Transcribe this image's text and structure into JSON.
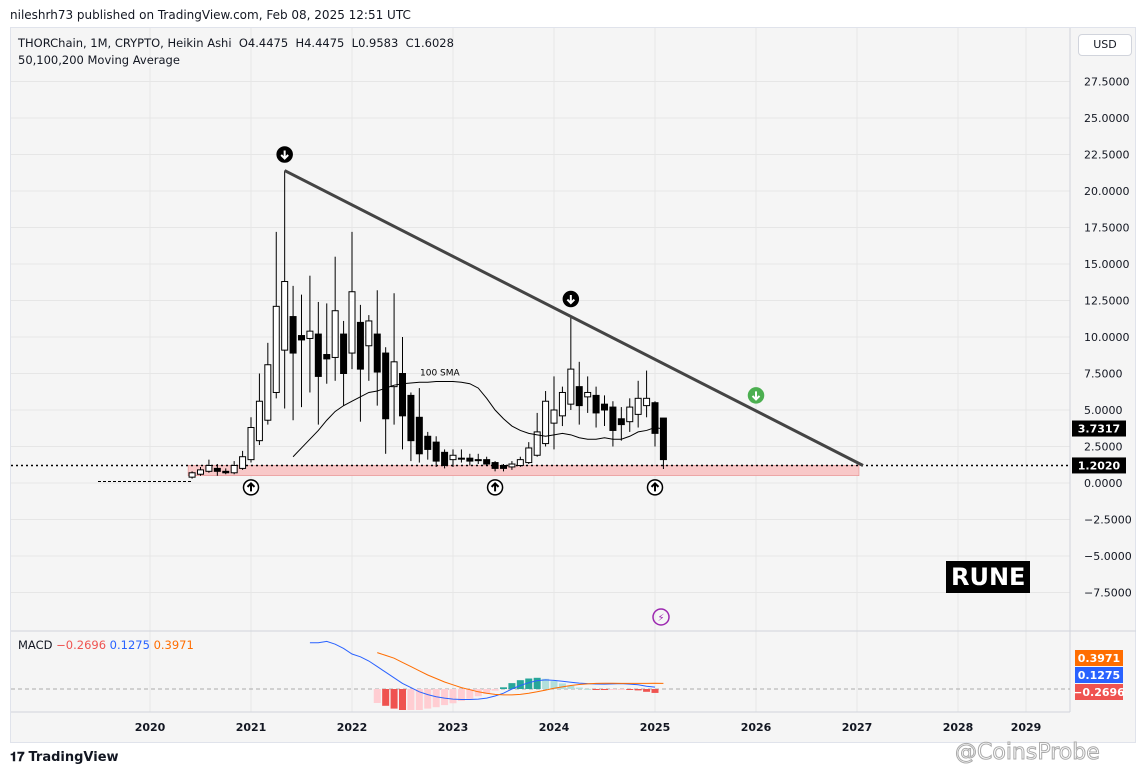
{
  "header": {
    "published": "nileshrh73 published on TradingView.com, Feb 08, 2025 12:51 UTC"
  },
  "legend": {
    "symbol": "THORChain, 1M, CRYPTO, Heikin Ashi",
    "open": "O4.4475",
    "high": "H4.4475",
    "low": "L0.9583",
    "close": "C1.6028",
    "indicator": "50,100,200 Moving Average"
  },
  "currency": "USD",
  "annotations": {
    "sma_label": "100 SMA",
    "rune_label": "RUNE"
  },
  "macd": {
    "label": "MACD",
    "hist": "−0.2696",
    "macd": "0.1275",
    "signal": "0.3971",
    "colors": {
      "macd": "#2962ff",
      "signal": "#ff6d00",
      "hist_neg": "#ef5350",
      "hist_pos": "#26a69a"
    }
  },
  "footer": {
    "brand": "TradingView",
    "watermark": "@CoinsProbe"
  },
  "chart_data": {
    "type": "candlestick",
    "price_ticks": [
      "27.5000",
      "25.0000",
      "22.5000",
      "20.0000",
      "17.5000",
      "15.0000",
      "12.5000",
      "10.0000",
      "7.5000",
      "5.0000",
      "2.5000",
      "0.0000",
      "−2.5000",
      "−5.0000",
      "−7.5000"
    ],
    "price_tick_values": [
      27.5,
      25,
      22.5,
      20,
      17.5,
      15,
      12.5,
      10,
      7.5,
      5,
      2.5,
      0,
      -2.5,
      -5,
      -7.5
    ],
    "year_ticks": [
      "2020",
      "2021",
      "2022",
      "2023",
      "2024",
      "2025",
      "2026",
      "2027",
      "2028",
      "2029"
    ],
    "ylim": [
      -10,
      29
    ],
    "last_price_label": "3.7317",
    "last_price": 3.7317,
    "support_label": "1.2020",
    "support": 1.202,
    "support_zone": [
      0.5,
      1.202
    ],
    "start_month": "2020-06",
    "candles": [
      [
        0.4,
        0.8,
        0.3,
        0.7
      ],
      [
        0.6,
        1.1,
        0.5,
        0.9
      ],
      [
        0.8,
        1.6,
        0.7,
        1.2
      ],
      [
        1.0,
        1.3,
        0.5,
        0.8
      ],
      [
        0.8,
        1.0,
        0.6,
        0.7
      ],
      [
        0.7,
        1.5,
        0.6,
        1.2
      ],
      [
        1.0,
        2.2,
        0.9,
        1.8
      ],
      [
        1.6,
        4.5,
        1.4,
        3.8
      ],
      [
        2.9,
        7.5,
        2.6,
        5.6
      ],
      [
        4.3,
        9.6,
        4.0,
        8.1
      ],
      [
        6.2,
        17.2,
        5.8,
        12.1
      ],
      [
        9.1,
        21.4,
        5.1,
        13.8
      ],
      [
        11.4,
        13.5,
        4.3,
        8.9
      ],
      [
        10.1,
        12.9,
        5.2,
        9.8
      ],
      [
        9.9,
        14.2,
        6.2,
        10.4
      ],
      [
        10.2,
        12.4,
        4.0,
        7.3
      ],
      [
        8.8,
        12.3,
        6.8,
        8.5
      ],
      [
        8.6,
        15.5,
        7.0,
        11.8
      ],
      [
        10.2,
        11.1,
        5.3,
        7.5
      ],
      [
        8.9,
        17.2,
        7.8,
        13.1
      ],
      [
        11.0,
        12.2,
        4.2,
        7.8
      ],
      [
        9.4,
        11.5,
        7.0,
        11.1
      ],
      [
        10.2,
        13.2,
        5.3,
        7.6
      ],
      [
        8.9,
        9.3,
        2.0,
        4.4
      ],
      [
        6.6,
        13.0,
        4.0,
        8.3
      ],
      [
        7.5,
        10.0,
        2.3,
        4.6
      ],
      [
        6.0,
        6.2,
        1.5,
        2.9
      ],
      [
        4.5,
        6.5,
        1.4,
        2.0
      ],
      [
        3.2,
        3.5,
        1.6,
        2.3
      ],
      [
        2.8,
        3.2,
        1.1,
        1.5
      ],
      [
        2.1,
        2.3,
        1.0,
        1.2
      ],
      [
        1.6,
        2.3,
        1.1,
        1.9
      ],
      [
        1.7,
        2.3,
        1.4,
        1.7
      ],
      [
        1.7,
        2.0,
        1.2,
        1.5
      ],
      [
        1.6,
        2.0,
        1.3,
        1.6
      ],
      [
        1.6,
        1.8,
        1.2,
        1.3
      ],
      [
        1.4,
        1.5,
        0.8,
        1.0
      ],
      [
        1.2,
        1.3,
        0.8,
        1.0
      ],
      [
        1.1,
        1.5,
        0.9,
        1.3
      ],
      [
        1.2,
        1.8,
        1.1,
        1.6
      ],
      [
        1.4,
        2.8,
        1.3,
        2.4
      ],
      [
        1.9,
        4.8,
        1.8,
        3.5
      ],
      [
        2.7,
        6.3,
        2.5,
        5.6
      ],
      [
        4.1,
        7.3,
        2.3,
        5.0
      ],
      [
        4.6,
        6.6,
        3.9,
        6.2
      ],
      [
        5.4,
        11.5,
        5.0,
        7.8
      ],
      [
        6.6,
        8.3,
        4.0,
        5.3
      ],
      [
        5.9,
        7.3,
        4.8,
        6.2
      ],
      [
        6.0,
        6.6,
        3.8,
        4.8
      ],
      [
        5.4,
        6.0,
        3.9,
        5.0
      ],
      [
        5.2,
        5.6,
        2.5,
        3.6
      ],
      [
        4.4,
        5.2,
        2.9,
        4.0
      ],
      [
        4.2,
        5.8,
        3.5,
        5.2
      ],
      [
        4.7,
        7.0,
        3.8,
        5.8
      ],
      [
        5.3,
        7.7,
        4.5,
        5.8
      ],
      [
        5.5,
        5.6,
        2.5,
        3.4
      ],
      [
        4.4475,
        4.4475,
        0.9583,
        1.6028
      ]
    ],
    "sma100_start": "2021-06",
    "sma100": [
      1.8,
      2.4,
      3.0,
      3.6,
      4.3,
      4.9,
      5.3,
      5.6,
      5.9,
      6.2,
      6.3,
      6.5,
      6.7,
      6.8,
      6.85,
      6.9,
      6.9,
      6.95,
      6.95,
      6.95,
      6.9,
      6.8,
      6.5,
      5.8,
      5.0,
      4.4,
      3.9,
      3.6,
      3.4,
      3.3,
      3.2,
      3.3,
      3.4,
      3.3,
      3.1,
      3.0,
      3.0,
      3.1,
      3.0,
      3.0,
      3.2,
      3.5,
      3.6,
      3.8,
      3.7
    ],
    "trendline": {
      "from": [
        "2021-05",
        21.4
      ],
      "to": [
        "2027-01",
        1.2
      ]
    },
    "arrows_down": [
      [
        "2021-05",
        22.5
      ],
      [
        "2024-03",
        12.6
      ]
    ],
    "arrows_up": [
      [
        "2021-01",
        -0.3
      ],
      [
        "2023-06",
        -0.3
      ],
      [
        "2025-01",
        -0.3
      ]
    ],
    "arrow_green": [
      "2026-01",
      6.0
    ],
    "macd_start": "2021-08",
    "macd_line": [
      3.3,
      3.3,
      3.4,
      3.2,
      2.9,
      2.5,
      2.3,
      2.0,
      1.6,
      1.2,
      0.8,
      0.4,
      0.1,
      -0.2,
      -0.4,
      -0.55,
      -0.65,
      -0.72,
      -0.75,
      -0.75,
      -0.72,
      -0.65,
      -0.5,
      -0.3,
      0.0,
      0.25,
      0.45,
      0.6,
      0.65,
      0.62,
      0.55,
      0.48,
      0.42,
      0.38,
      0.36,
      0.35,
      0.37,
      0.38,
      0.35,
      0.3,
      0.2,
      0.13
    ],
    "signal_start": "2022-04",
    "signal_line": [
      2.6,
      2.4,
      2.2,
      1.9,
      1.6,
      1.3,
      1.0,
      0.75,
      0.5,
      0.3,
      0.1,
      -0.05,
      -0.2,
      -0.3,
      -0.38,
      -0.42,
      -0.42,
      -0.38,
      -0.3,
      -0.2,
      -0.08,
      0.05,
      0.15,
      0.25,
      0.32,
      0.37,
      0.4,
      0.41,
      0.41,
      0.4,
      0.4,
      0.4,
      0.4,
      0.41,
      0.4
    ]
  }
}
